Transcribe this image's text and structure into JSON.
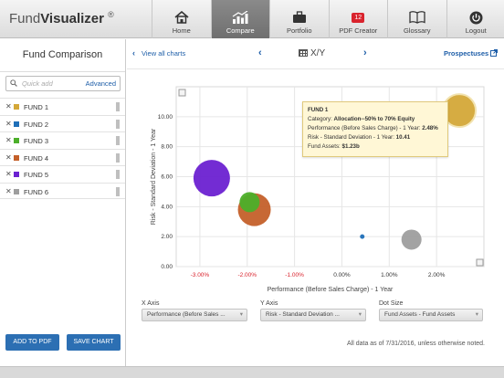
{
  "app": {
    "brand_plain": "Fund",
    "brand_bold": "Visualizer",
    "brand_mark": "®"
  },
  "nav": [
    {
      "label": "Home",
      "icon": "home-icon"
    },
    {
      "label": "Compare",
      "icon": "bar-chart-icon",
      "active": true
    },
    {
      "label": "Portfolio",
      "icon": "briefcase-icon"
    },
    {
      "label": "PDF Creator",
      "icon": "pdf-badge-icon",
      "badge": "12"
    },
    {
      "label": "Glossary",
      "icon": "book-icon"
    },
    {
      "label": "Logout",
      "icon": "power-icon"
    }
  ],
  "sidebar": {
    "title": "Fund Comparison",
    "search_placeholder": "Quick add",
    "advanced_label": "Advanced",
    "funds": [
      {
        "name": "FUND 1",
        "color": "#d4a838"
      },
      {
        "name": "FUND 2",
        "color": "#1f6fb8"
      },
      {
        "name": "FUND 3",
        "color": "#4caf2a"
      },
      {
        "name": "FUND 4",
        "color": "#c4602a"
      },
      {
        "name": "FUND 5",
        "color": "#6b21d1"
      },
      {
        "name": "FUND 6",
        "color": "#9e9e9e"
      }
    ],
    "add_pdf_label": "ADD TO PDF",
    "save_chart_label": "SAVE CHART"
  },
  "toolbar": {
    "view_all": "View all charts",
    "chart_label": "X/Y",
    "prospectuses": "Prospectuses"
  },
  "tooltip": {
    "title": "FUND 1",
    "line1_label": "Category: ",
    "line1_value": "Allocation--50% to 70% Equity",
    "line2_label": "Performance (Before Sales Charge) - 1 Year: ",
    "line2_value": "2.48%",
    "line3_label": "Risk - Standard Deviation - 1 Year: ",
    "line3_value": "10.41",
    "line4_label": "Fund Assets: ",
    "line4_value": "$1.23b"
  },
  "chart_data": {
    "type": "scatter",
    "xlabel": "Performance (Before Sales Charge) - 1 Year",
    "ylabel": "Risk - Standard Deviation - 1 Year",
    "xlim": [
      -3.5,
      3.0
    ],
    "ylim": [
      0,
      12
    ],
    "x_ticks": [
      "-3.00%",
      "-2.00%",
      "-1.00%",
      "0.00%",
      "1.00%",
      "2.00%"
    ],
    "x_tick_values": [
      -3,
      -2,
      -1,
      0,
      1,
      2
    ],
    "y_ticks": [
      "0.00",
      "2.00",
      "4.00",
      "6.00",
      "8.00",
      "10.00"
    ],
    "y_tick_values": [
      0,
      2,
      4,
      6,
      8,
      10
    ],
    "grid": true,
    "size_by": "Fund Assets",
    "points": [
      {
        "name": "FUND 1",
        "x": 2.48,
        "y": 10.41,
        "size": 18,
        "color": "#d4a838"
      },
      {
        "name": "FUND 2",
        "x": 0.43,
        "y": 2.0,
        "size": 2.5,
        "color": "#1f6fb8"
      },
      {
        "name": "FUND 3",
        "x": -1.95,
        "y": 4.3,
        "size": 11,
        "color": "#4caf2a"
      },
      {
        "name": "FUND 4",
        "x": -1.85,
        "y": 3.8,
        "size": 18,
        "color": "#c4602a"
      },
      {
        "name": "FUND 5",
        "x": -2.75,
        "y": 5.9,
        "size": 20,
        "color": "#6b21d1"
      },
      {
        "name": "FUND 6",
        "x": 1.47,
        "y": 1.8,
        "size": 11,
        "color": "#9e9e9e"
      }
    ]
  },
  "controls": {
    "x_axis_label": "X Axis",
    "x_axis_value": "Performance (Before Sales ...",
    "y_axis_label": "Y Axis",
    "y_axis_value": "Risk - Standard Deviation ...",
    "dot_size_label": "Dot Size",
    "dot_size_value": "Fund Assets - Fund Assets"
  },
  "footnote": "All data as of 7/31/2016, unless otherwise noted."
}
